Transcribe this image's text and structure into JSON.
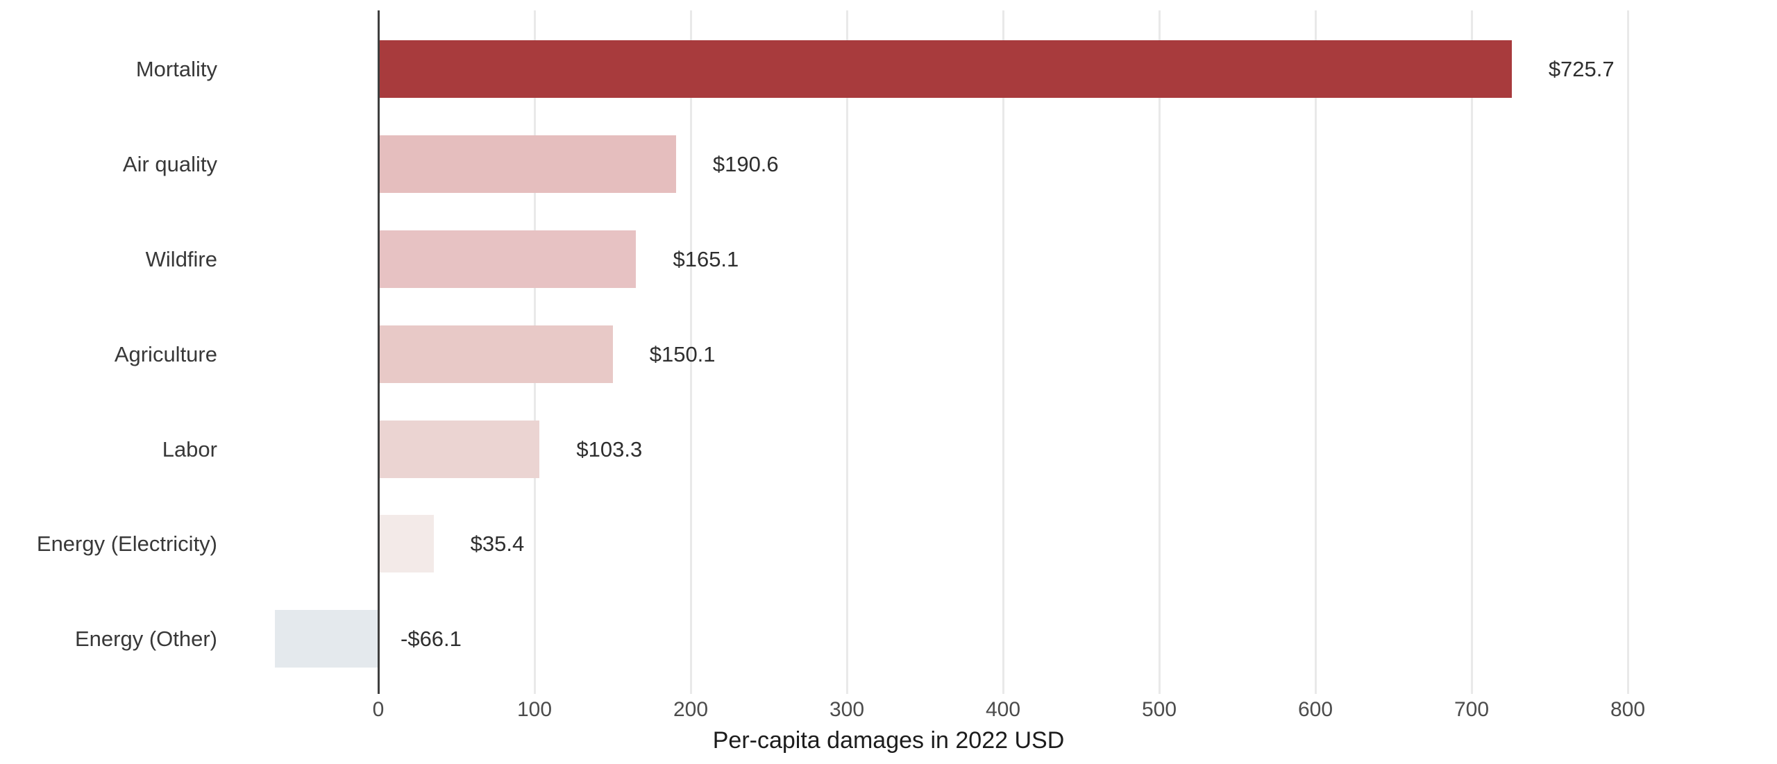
{
  "chart_data": {
    "type": "bar",
    "orientation": "horizontal",
    "title": "",
    "xlabel": "Per-capita damages in 2022 USD",
    "ylabel": "",
    "categories": [
      "Mortality",
      "Air quality",
      "Wildfire",
      "Agriculture",
      "Labor",
      "Energy (Electricity)",
      "Energy (Other)"
    ],
    "values": [
      725.7,
      190.6,
      165.1,
      150.1,
      103.3,
      35.4,
      -66.1
    ],
    "value_labels": [
      "$725.7",
      "$190.6",
      "$165.1",
      "$150.1",
      "$103.3",
      "$35.4",
      "-$66.1"
    ],
    "bar_colors": [
      "#A83B3D",
      "#E5BEBE",
      "#E7C2C3",
      "#E8C9C7",
      "#EBD4D2",
      "#F3EAE8",
      "#E4E9ED"
    ],
    "x_ticks": [
      "0",
      "100",
      "200",
      "300",
      "400",
      "500",
      "600",
      "700",
      "800"
    ],
    "x_tick_values": [
      0,
      100,
      200,
      300,
      400,
      500,
      600,
      700,
      800
    ],
    "xlim": [
      -95,
      840
    ],
    "grid": "vertical-only",
    "legend": "none",
    "colors": {
      "gridline": "#E9E9E9",
      "zero_axis_line": "#3F3F3F",
      "category_text": "#383838",
      "value_text": "#2E2E2E",
      "tick_text": "#4B4B4B",
      "axis_title_text": "#1C1C1C",
      "background": "#FFFFFF"
    }
  }
}
